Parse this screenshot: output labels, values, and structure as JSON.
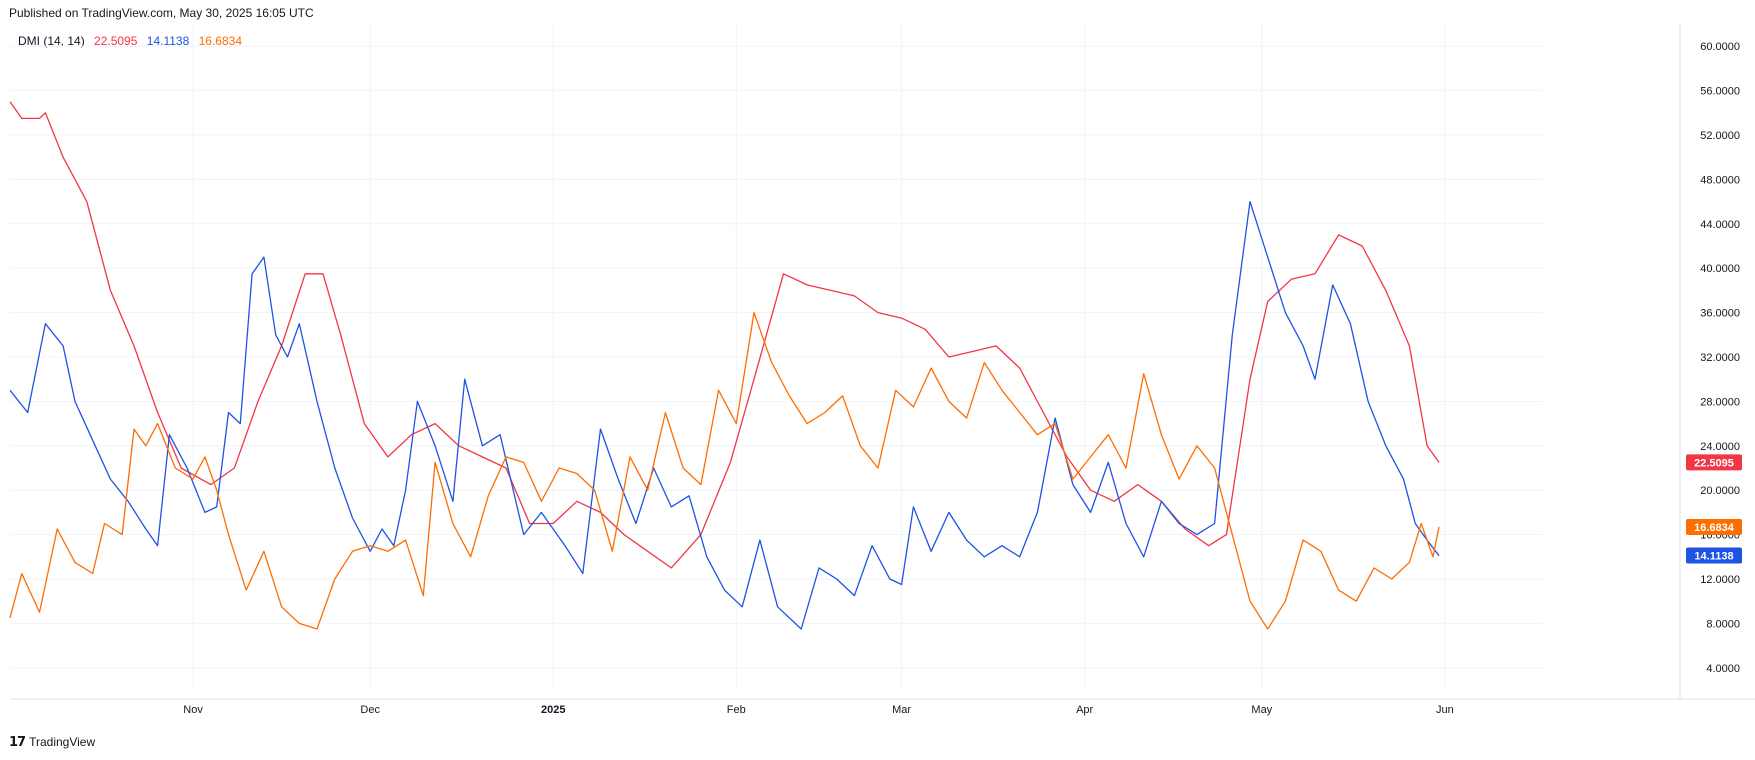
{
  "header": {
    "published": "Published on TradingView.com, May 30, 2025 16:05 UTC"
  },
  "legend": {
    "indicator": "DMI (14, 14)",
    "values": [
      "22.5095",
      "14.1138",
      "16.6834"
    ]
  },
  "footer": {
    "brand": "TradingView",
    "logo_icon": "tradingview-logo-icon"
  },
  "colors": {
    "plus_di": "#1e53e5",
    "minus_di": "#ff6d00",
    "adx": "#f23645",
    "grid": "#f0f3fa",
    "axis": "#131722"
  },
  "chart_data": {
    "type": "line",
    "title": "DMI (14, 14)",
    "x_range": [
      "2024-10-01",
      "2025-06-10"
    ],
    "ylim": [
      2,
      62
    ],
    "y_ticks": [
      "4.0000",
      "8.0000",
      "12.0000",
      "16.0000",
      "20.0000",
      "24.0000",
      "28.0000",
      "32.0000",
      "36.0000",
      "40.0000",
      "44.0000",
      "48.0000",
      "52.0000",
      "56.0000",
      "60.0000"
    ],
    "x_ticks": [
      {
        "label": "Nov",
        "date": "2024-11-01"
      },
      {
        "label": "Dec",
        "date": "2024-12-01"
      },
      {
        "label": "2025",
        "date": "2025-01-01",
        "bold": true
      },
      {
        "label": "Feb",
        "date": "2025-02-01"
      },
      {
        "label": "Mar",
        "date": "2025-03-01"
      },
      {
        "label": "Apr",
        "date": "2025-04-01"
      },
      {
        "label": "May",
        "date": "2025-05-01"
      },
      {
        "label": "Jun",
        "date": "2025-06-01"
      }
    ],
    "grid": true,
    "series": [
      {
        "color": "#f23645",
        "last": "22.5095",
        "points": [
          [
            "2024-10-01",
            55
          ],
          [
            "2024-10-03",
            53.5
          ],
          [
            "2024-10-06",
            53.5
          ],
          [
            "2024-10-07",
            54
          ],
          [
            "2024-10-10",
            50
          ],
          [
            "2024-10-14",
            46
          ],
          [
            "2024-10-18",
            38
          ],
          [
            "2024-10-22",
            33
          ],
          [
            "2024-10-26",
            27
          ],
          [
            "2024-10-30",
            22
          ],
          [
            "2024-11-04",
            20.5
          ],
          [
            "2024-11-08",
            22
          ],
          [
            "2024-11-12",
            28
          ],
          [
            "2024-11-16",
            33
          ],
          [
            "2024-11-20",
            39.5
          ],
          [
            "2024-11-23",
            39.5
          ],
          [
            "2024-11-26",
            34
          ],
          [
            "2024-11-30",
            26
          ],
          [
            "2024-12-04",
            23
          ],
          [
            "2024-12-08",
            25
          ],
          [
            "2024-12-12",
            26
          ],
          [
            "2024-12-16",
            24
          ],
          [
            "2024-12-20",
            23
          ],
          [
            "2024-12-24",
            22
          ],
          [
            "2024-12-28",
            17
          ],
          [
            "2025-01-01",
            17
          ],
          [
            "2025-01-05",
            19
          ],
          [
            "2025-01-09",
            18
          ],
          [
            "2025-01-13",
            16
          ],
          [
            "2025-01-17",
            14.5
          ],
          [
            "2025-01-21",
            13
          ],
          [
            "2025-01-26",
            16
          ],
          [
            "2025-01-31",
            22.5
          ],
          [
            "2025-02-04",
            30
          ],
          [
            "2025-02-09",
            39.5
          ],
          [
            "2025-02-13",
            38.5
          ],
          [
            "2025-02-17",
            38
          ],
          [
            "2025-02-21",
            37.5
          ],
          [
            "2025-02-25",
            36
          ],
          [
            "2025-03-01",
            35.5
          ],
          [
            "2025-03-05",
            34.5
          ],
          [
            "2025-03-09",
            32
          ],
          [
            "2025-03-13",
            32.5
          ],
          [
            "2025-03-17",
            33
          ],
          [
            "2025-03-21",
            31
          ],
          [
            "2025-03-25",
            27
          ],
          [
            "2025-03-29",
            23
          ],
          [
            "2025-04-02",
            20
          ],
          [
            "2025-04-06",
            19
          ],
          [
            "2025-04-10",
            20.5
          ],
          [
            "2025-04-14",
            19
          ],
          [
            "2025-04-18",
            16.5
          ],
          [
            "2025-04-22",
            15
          ],
          [
            "2025-04-25",
            16
          ],
          [
            "2025-04-29",
            30
          ],
          [
            "2025-05-02",
            37
          ],
          [
            "2025-05-06",
            39
          ],
          [
            "2025-05-10",
            39.5
          ],
          [
            "2025-05-14",
            43
          ],
          [
            "2025-05-18",
            42
          ],
          [
            "2025-05-22",
            38
          ],
          [
            "2025-05-26",
            33
          ],
          [
            "2025-05-29",
            24
          ],
          [
            "2025-05-31",
            22.5
          ]
        ]
      },
      {
        "color": "#1e53e5",
        "last": "14.1138",
        "points": [
          [
            "2024-10-01",
            29
          ],
          [
            "2024-10-04",
            27
          ],
          [
            "2024-10-07",
            35
          ],
          [
            "2024-10-10",
            33
          ],
          [
            "2024-10-12",
            28
          ],
          [
            "2024-10-15",
            24.5
          ],
          [
            "2024-10-18",
            21
          ],
          [
            "2024-10-21",
            19
          ],
          [
            "2024-10-24",
            16.5
          ],
          [
            "2024-10-26",
            15
          ],
          [
            "2024-10-28",
            25
          ],
          [
            "2024-10-31",
            22
          ],
          [
            "2024-11-03",
            18
          ],
          [
            "2024-11-05",
            18.5
          ],
          [
            "2024-11-07",
            27
          ],
          [
            "2024-11-09",
            26
          ],
          [
            "2024-11-11",
            39.5
          ],
          [
            "2024-11-13",
            41
          ],
          [
            "2024-11-15",
            34
          ],
          [
            "2024-11-17",
            32
          ],
          [
            "2024-11-19",
            35
          ],
          [
            "2024-11-22",
            28
          ],
          [
            "2024-11-25",
            22
          ],
          [
            "2024-11-28",
            17.5
          ],
          [
            "2024-12-01",
            14.5
          ],
          [
            "2024-12-03",
            16.5
          ],
          [
            "2024-12-05",
            15
          ],
          [
            "2024-12-07",
            20
          ],
          [
            "2024-12-09",
            28
          ],
          [
            "2024-12-12",
            24
          ],
          [
            "2024-12-15",
            19
          ],
          [
            "2024-12-17",
            30
          ],
          [
            "2024-12-20",
            24
          ],
          [
            "2024-12-23",
            25
          ],
          [
            "2024-12-27",
            16
          ],
          [
            "2024-12-30",
            18
          ],
          [
            "2025-01-03",
            15
          ],
          [
            "2025-01-06",
            12.5
          ],
          [
            "2025-01-09",
            25.5
          ],
          [
            "2025-01-12",
            21
          ],
          [
            "2025-01-15",
            17
          ],
          [
            "2025-01-18",
            22
          ],
          [
            "2025-01-21",
            18.5
          ],
          [
            "2025-01-24",
            19.5
          ],
          [
            "2025-01-27",
            14
          ],
          [
            "2025-01-30",
            11
          ],
          [
            "2025-02-02",
            9.5
          ],
          [
            "2025-02-05",
            15.5
          ],
          [
            "2025-02-08",
            9.5
          ],
          [
            "2025-02-12",
            7.5
          ],
          [
            "2025-02-15",
            13
          ],
          [
            "2025-02-18",
            12
          ],
          [
            "2025-02-21",
            10.5
          ],
          [
            "2025-02-24",
            15
          ],
          [
            "2025-02-27",
            12
          ],
          [
            "2025-03-01",
            11.5
          ],
          [
            "2025-03-03",
            18.5
          ],
          [
            "2025-03-06",
            14.5
          ],
          [
            "2025-03-09",
            18
          ],
          [
            "2025-03-12",
            15.5
          ],
          [
            "2025-03-15",
            14
          ],
          [
            "2025-03-18",
            15
          ],
          [
            "2025-03-21",
            14
          ],
          [
            "2025-03-24",
            18
          ],
          [
            "2025-03-27",
            26.5
          ],
          [
            "2025-03-30",
            20.5
          ],
          [
            "2025-04-02",
            18
          ],
          [
            "2025-04-05",
            22.5
          ],
          [
            "2025-04-08",
            17
          ],
          [
            "2025-04-11",
            14
          ],
          [
            "2025-04-14",
            19
          ],
          [
            "2025-04-17",
            17
          ],
          [
            "2025-04-20",
            16
          ],
          [
            "2025-04-23",
            17
          ],
          [
            "2025-04-26",
            34
          ],
          [
            "2025-04-29",
            46
          ],
          [
            "2025-05-02",
            41
          ],
          [
            "2025-05-05",
            36
          ],
          [
            "2025-05-08",
            33
          ],
          [
            "2025-05-10",
            30
          ],
          [
            "2025-05-13",
            38.5
          ],
          [
            "2025-05-16",
            35
          ],
          [
            "2025-05-19",
            28
          ],
          [
            "2025-05-22",
            24
          ],
          [
            "2025-05-25",
            21
          ],
          [
            "2025-05-27",
            17
          ],
          [
            "2025-05-29",
            15.5
          ],
          [
            "2025-05-31",
            14.1
          ]
        ]
      },
      {
        "color": "#ff6d00",
        "last": "16.6834",
        "points": [
          [
            "2024-10-01",
            8.5
          ],
          [
            "2024-10-03",
            12.5
          ],
          [
            "2024-10-06",
            9
          ],
          [
            "2024-10-09",
            16.5
          ],
          [
            "2024-10-12",
            13.5
          ],
          [
            "2024-10-15",
            12.5
          ],
          [
            "2024-10-17",
            17
          ],
          [
            "2024-10-20",
            16
          ],
          [
            "2024-10-22",
            25.5
          ],
          [
            "2024-10-24",
            24
          ],
          [
            "2024-10-26",
            26
          ],
          [
            "2024-10-29",
            22
          ],
          [
            "2024-11-01",
            21
          ],
          [
            "2024-11-03",
            23
          ],
          [
            "2024-11-05",
            20
          ],
          [
            "2024-11-07",
            16
          ],
          [
            "2024-11-10",
            11
          ],
          [
            "2024-11-13",
            14.5
          ],
          [
            "2024-11-16",
            9.5
          ],
          [
            "2024-11-19",
            8
          ],
          [
            "2024-11-22",
            7.5
          ],
          [
            "2024-11-25",
            12
          ],
          [
            "2024-11-28",
            14.5
          ],
          [
            "2024-12-01",
            15
          ],
          [
            "2024-12-04",
            14.5
          ],
          [
            "2024-12-07",
            15.5
          ],
          [
            "2024-12-10",
            10.5
          ],
          [
            "2024-12-12",
            22.5
          ],
          [
            "2024-12-15",
            17
          ],
          [
            "2024-12-18",
            14
          ],
          [
            "2024-12-21",
            19.5
          ],
          [
            "2024-12-24",
            23
          ],
          [
            "2024-12-27",
            22.5
          ],
          [
            "2024-12-30",
            19
          ],
          [
            "2025-01-02",
            22
          ],
          [
            "2025-01-05",
            21.5
          ],
          [
            "2025-01-08",
            20
          ],
          [
            "2025-01-11",
            14.5
          ],
          [
            "2025-01-14",
            23
          ],
          [
            "2025-01-17",
            20
          ],
          [
            "2025-01-20",
            27
          ],
          [
            "2025-01-23",
            22
          ],
          [
            "2025-01-26",
            20.5
          ],
          [
            "2025-01-29",
            29
          ],
          [
            "2025-02-01",
            26
          ],
          [
            "2025-02-04",
            36
          ],
          [
            "2025-02-07",
            31.5
          ],
          [
            "2025-02-10",
            28.5
          ],
          [
            "2025-02-13",
            26
          ],
          [
            "2025-02-16",
            27
          ],
          [
            "2025-02-19",
            28.5
          ],
          [
            "2025-02-22",
            24
          ],
          [
            "2025-02-25",
            22
          ],
          [
            "2025-02-28",
            29
          ],
          [
            "2025-03-03",
            27.5
          ],
          [
            "2025-03-06",
            31
          ],
          [
            "2025-03-09",
            28
          ],
          [
            "2025-03-12",
            26.5
          ],
          [
            "2025-03-15",
            31.5
          ],
          [
            "2025-03-18",
            29
          ],
          [
            "2025-03-21",
            27
          ],
          [
            "2025-03-24",
            25
          ],
          [
            "2025-03-27",
            26
          ],
          [
            "2025-03-30",
            21
          ],
          [
            "2025-04-02",
            23
          ],
          [
            "2025-04-05",
            25
          ],
          [
            "2025-04-08",
            22
          ],
          [
            "2025-04-11",
            30.5
          ],
          [
            "2025-04-14",
            25
          ],
          [
            "2025-04-17",
            21
          ],
          [
            "2025-04-20",
            24
          ],
          [
            "2025-04-23",
            22
          ],
          [
            "2025-04-26",
            16
          ],
          [
            "2025-04-29",
            10
          ],
          [
            "2025-05-02",
            7.5
          ],
          [
            "2025-05-05",
            10
          ],
          [
            "2025-05-08",
            15.5
          ],
          [
            "2025-05-11",
            14.5
          ],
          [
            "2025-05-14",
            11
          ],
          [
            "2025-05-17",
            10
          ],
          [
            "2025-05-20",
            13
          ],
          [
            "2025-05-23",
            12
          ],
          [
            "2025-05-26",
            13.5
          ],
          [
            "2025-05-28",
            17
          ],
          [
            "2025-05-30",
            14
          ],
          [
            "2025-05-31",
            16.7
          ]
        ]
      }
    ]
  }
}
